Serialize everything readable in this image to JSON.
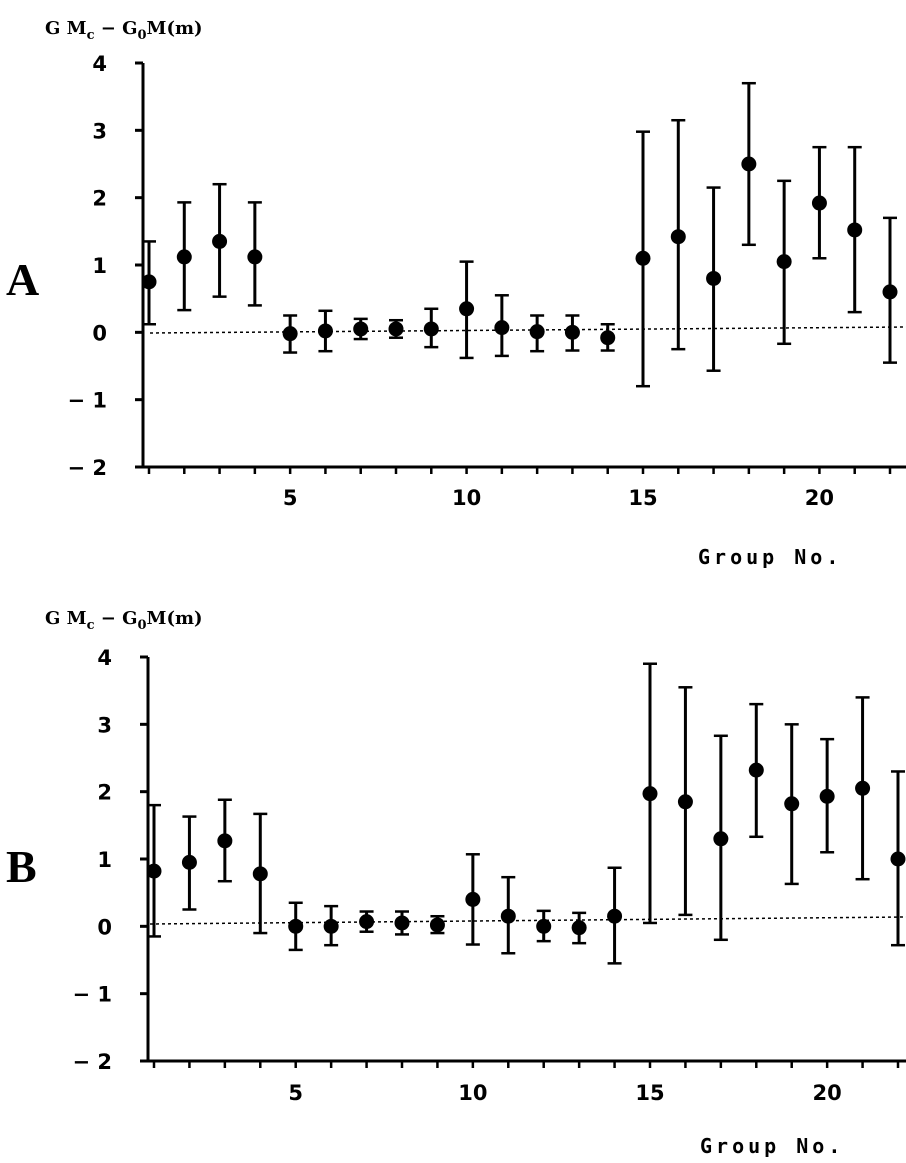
{
  "chart_data": [
    {
      "type": "scatter",
      "panel": "A",
      "ylabel": "GMc − G0M(m)",
      "xlabel": "Group No.",
      "ylim": [
        -2,
        4
      ],
      "xlim": [
        1,
        22
      ],
      "yticks": [
        4,
        3,
        2,
        1,
        0,
        -1,
        -2
      ],
      "ytick_labels": [
        "4",
        "3",
        "2",
        "1",
        "0",
        "− 1",
        "− 2"
      ],
      "xticks": [
        5,
        10,
        15,
        20
      ],
      "xtick_labels": [
        "5",
        "10",
        "15",
        "20"
      ],
      "grid": false,
      "reference_line": "dotted baseline near 0",
      "points": [
        {
          "x": 1,
          "y": 0.75,
          "low": 0.12,
          "high": 1.35
        },
        {
          "x": 2,
          "y": 1.12,
          "low": 0.33,
          "high": 1.93
        },
        {
          "x": 3,
          "y": 1.35,
          "low": 0.53,
          "high": 2.2
        },
        {
          "x": 4,
          "y": 1.12,
          "low": 0.4,
          "high": 1.93
        },
        {
          "x": 5,
          "y": -0.02,
          "low": -0.3,
          "high": 0.25
        },
        {
          "x": 6,
          "y": 0.02,
          "low": -0.28,
          "high": 0.32
        },
        {
          "x": 7,
          "y": 0.05,
          "low": -0.1,
          "high": 0.2
        },
        {
          "x": 8,
          "y": 0.05,
          "low": -0.08,
          "high": 0.18
        },
        {
          "x": 9,
          "y": 0.05,
          "low": -0.22,
          "high": 0.35
        },
        {
          "x": 10,
          "y": 0.35,
          "low": -0.38,
          "high": 1.05
        },
        {
          "x": 11,
          "y": 0.07,
          "low": -0.35,
          "high": 0.55
        },
        {
          "x": 12,
          "y": 0.01,
          "low": -0.28,
          "high": 0.25
        },
        {
          "x": 13,
          "y": 0.0,
          "low": -0.27,
          "high": 0.25
        },
        {
          "x": 14,
          "y": -0.08,
          "low": -0.27,
          "high": 0.12
        },
        {
          "x": 15,
          "y": 1.1,
          "low": -0.8,
          "high": 2.98
        },
        {
          "x": 16,
          "y": 1.42,
          "low": -0.25,
          "high": 3.15
        },
        {
          "x": 17,
          "y": 0.8,
          "low": -0.57,
          "high": 2.15
        },
        {
          "x": 18,
          "y": 2.5,
          "low": 1.3,
          "high": 3.7
        },
        {
          "x": 19,
          "y": 1.05,
          "low": -0.17,
          "high": 2.25
        },
        {
          "x": 20,
          "y": 1.92,
          "low": 1.1,
          "high": 2.75
        },
        {
          "x": 21,
          "y": 1.52,
          "low": 0.3,
          "high": 2.75
        },
        {
          "x": 22,
          "y": 0.6,
          "low": -0.45,
          "high": 1.7
        }
      ]
    },
    {
      "type": "scatter",
      "panel": "B",
      "ylabel": "GMc − G0M(m)",
      "xlabel": "Group No.",
      "ylim": [
        -2,
        4
      ],
      "xlim": [
        1,
        22
      ],
      "yticks": [
        4,
        3,
        2,
        1,
        0,
        -1,
        -2
      ],
      "ytick_labels": [
        "4",
        "3",
        "2",
        "1",
        "0",
        "− 1",
        "− 2"
      ],
      "xticks": [
        5,
        10,
        15,
        20
      ],
      "xtick_labels": [
        "5",
        "10",
        "15",
        "20"
      ],
      "grid": false,
      "reference_line": "dotted baseline near 0",
      "points": [
        {
          "x": 1,
          "y": 0.82,
          "low": -0.15,
          "high": 1.8
        },
        {
          "x": 2,
          "y": 0.95,
          "low": 0.25,
          "high": 1.63
        },
        {
          "x": 3,
          "y": 1.27,
          "low": 0.67,
          "high": 1.88
        },
        {
          "x": 4,
          "y": 0.78,
          "low": -0.1,
          "high": 1.67
        },
        {
          "x": 5,
          "y": 0.0,
          "low": -0.35,
          "high": 0.35
        },
        {
          "x": 6,
          "y": 0.0,
          "low": -0.28,
          "high": 0.3
        },
        {
          "x": 7,
          "y": 0.07,
          "low": -0.08,
          "high": 0.22
        },
        {
          "x": 8,
          "y": 0.05,
          "low": -0.12,
          "high": 0.22
        },
        {
          "x": 9,
          "y": 0.02,
          "low": -0.1,
          "high": 0.15
        },
        {
          "x": 10,
          "y": 0.4,
          "low": -0.27,
          "high": 1.07
        },
        {
          "x": 11,
          "y": 0.15,
          "low": -0.4,
          "high": 0.73
        },
        {
          "x": 12,
          "y": 0.0,
          "low": -0.22,
          "high": 0.23
        },
        {
          "x": 13,
          "y": -0.02,
          "low": -0.25,
          "high": 0.2
        },
        {
          "x": 14,
          "y": 0.15,
          "low": -0.55,
          "high": 0.87
        },
        {
          "x": 15,
          "y": 1.97,
          "low": 0.05,
          "high": 3.9
        },
        {
          "x": 16,
          "y": 1.85,
          "low": 0.17,
          "high": 3.55
        },
        {
          "x": 17,
          "y": 1.3,
          "low": -0.2,
          "high": 2.83
        },
        {
          "x": 18,
          "y": 2.32,
          "low": 1.33,
          "high": 3.3
        },
        {
          "x": 19,
          "y": 1.82,
          "low": 0.63,
          "high": 3.0
        },
        {
          "x": 20,
          "y": 1.93,
          "low": 1.1,
          "high": 2.78
        },
        {
          "x": 21,
          "y": 2.05,
          "low": 0.7,
          "high": 3.4
        },
        {
          "x": 22,
          "y": 1.0,
          "low": -0.28,
          "high": 2.3
        }
      ]
    }
  ]
}
